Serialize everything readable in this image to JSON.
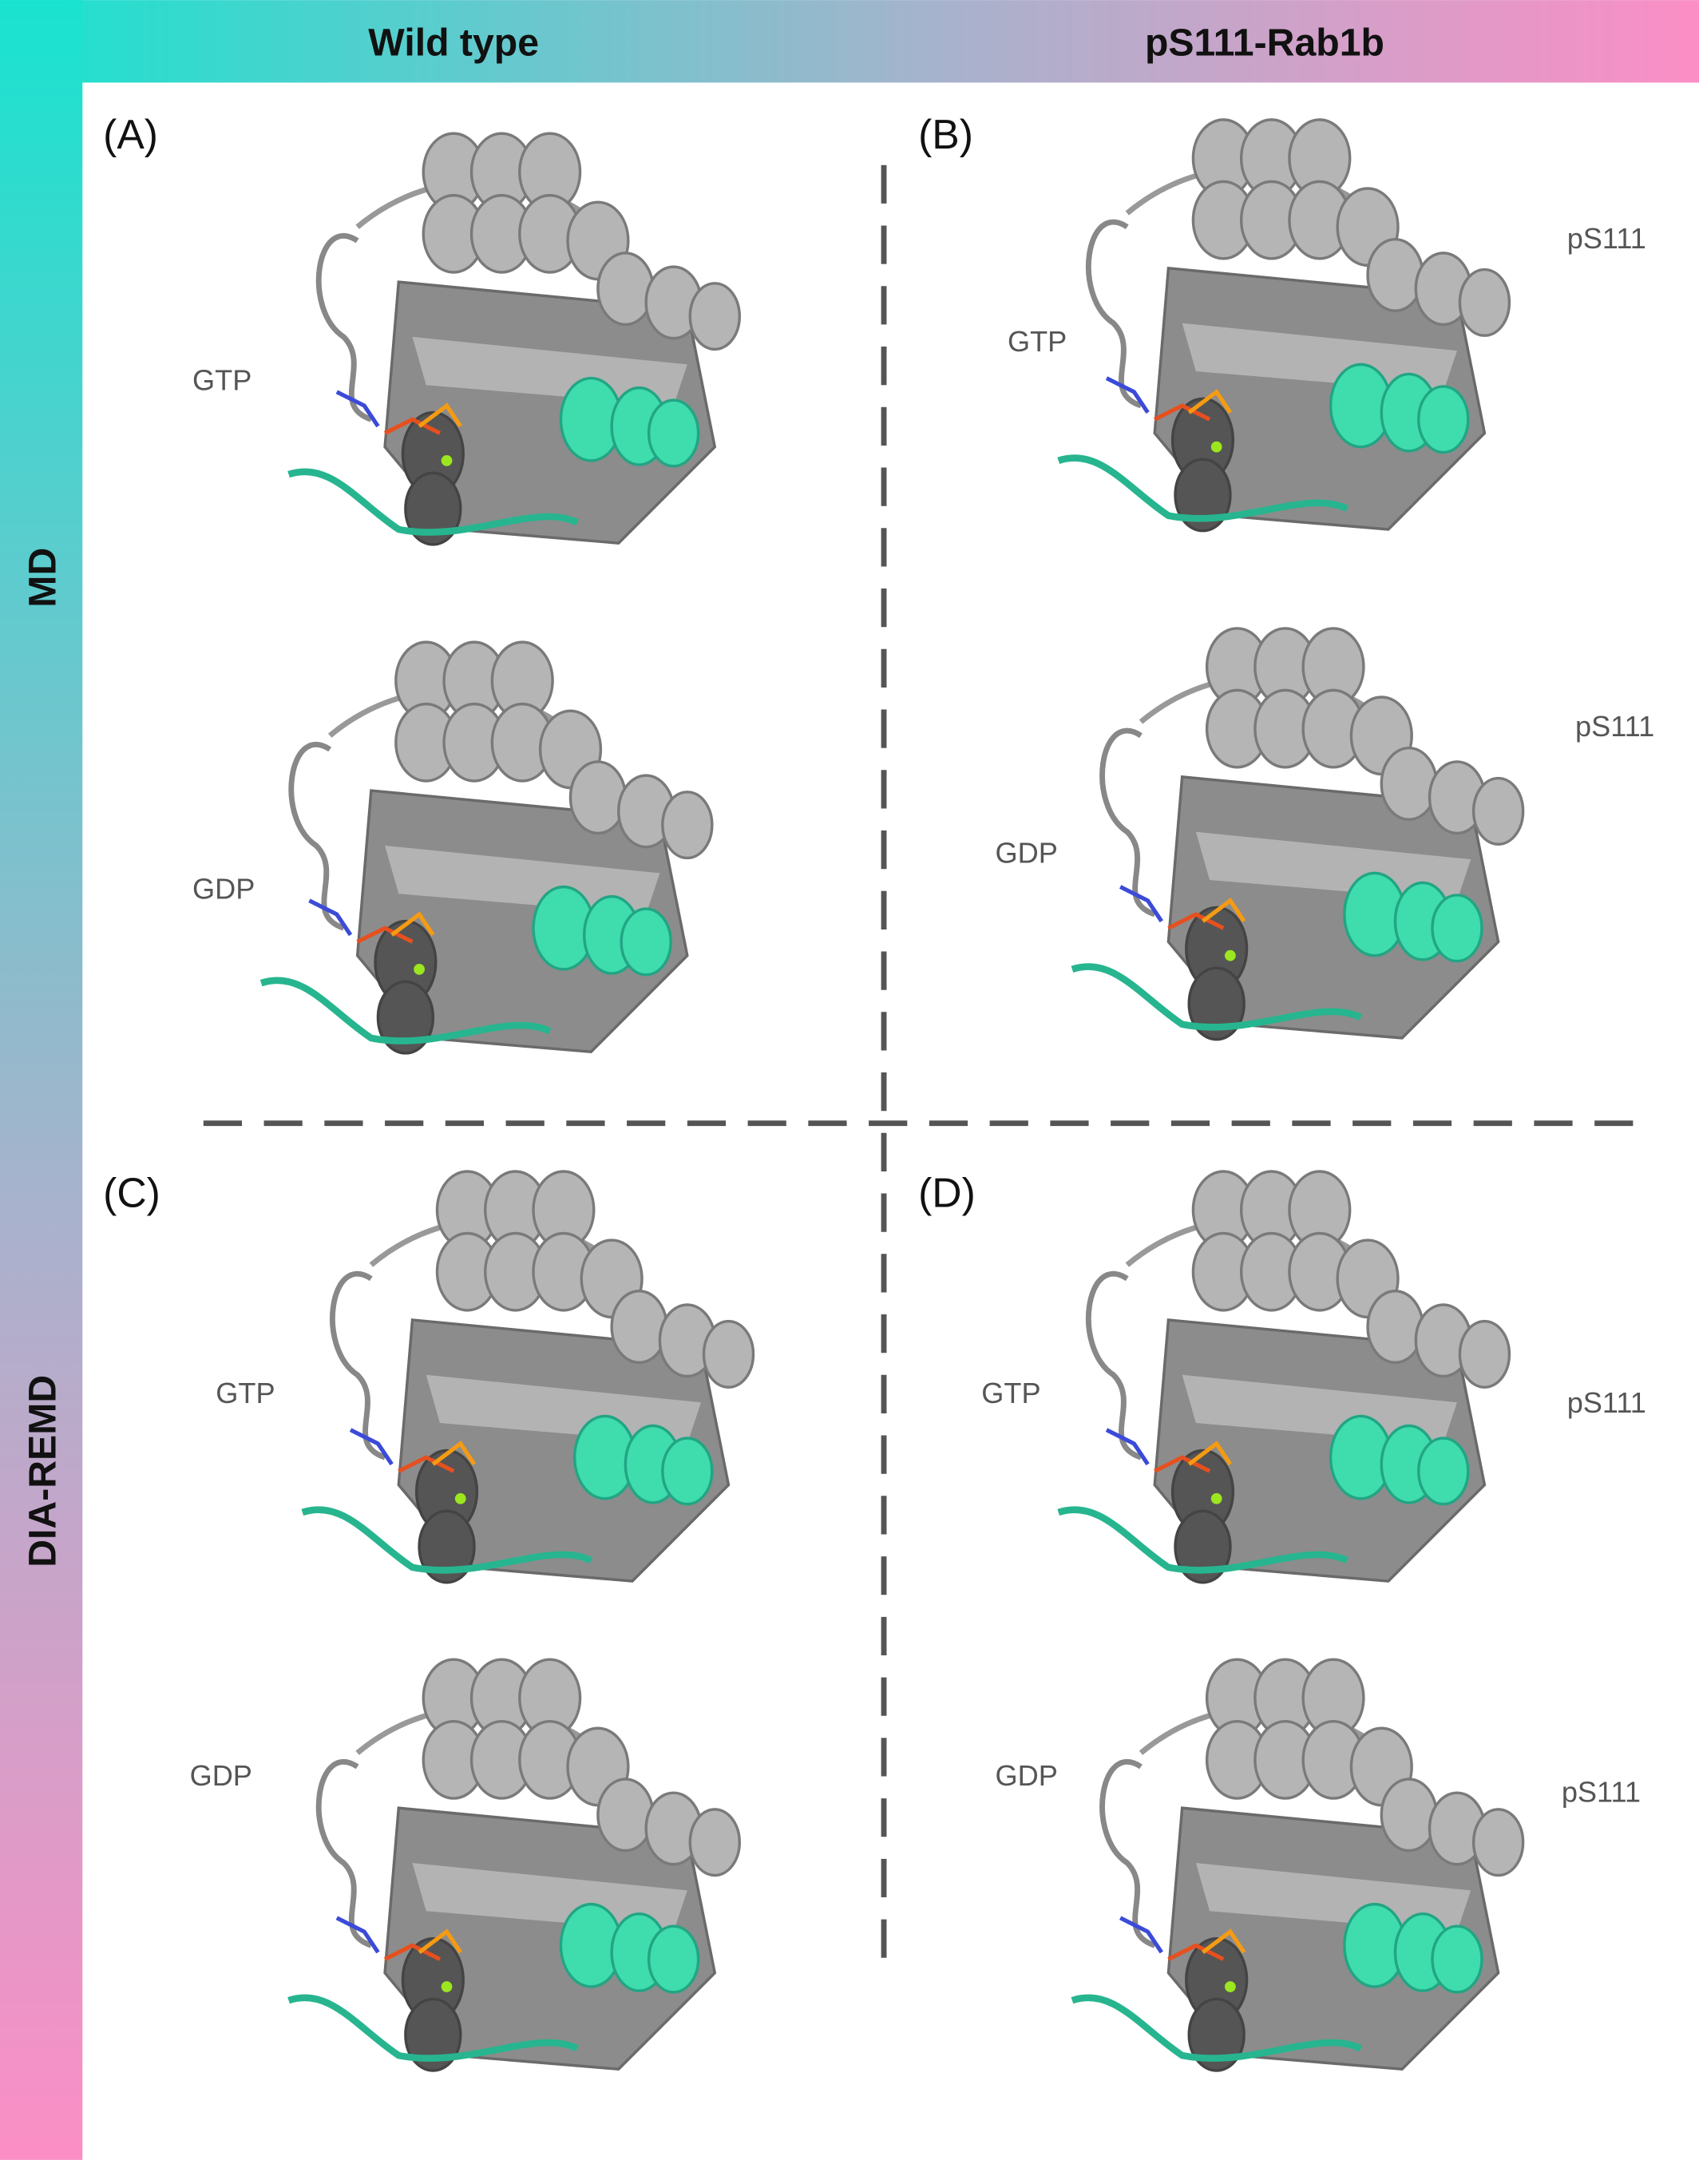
{
  "header": {
    "columns": [
      "Wild type",
      "pS111-Rab1b"
    ],
    "rows": [
      "MD",
      "DIA-REMD"
    ]
  },
  "panels": [
    {
      "label": "(A)",
      "ligands": [
        "GTP",
        "GDP"
      ]
    },
    {
      "label": "(B)",
      "ligands": [
        "GTP",
        "GDP"
      ],
      "sites": [
        "pS111",
        "pS111"
      ]
    },
    {
      "label": "(C)",
      "ligands": [
        "GTP",
        "GDP"
      ]
    },
    {
      "label": "(D)",
      "ligands": [
        "GTP",
        "GDP"
      ],
      "sites": [
        "pS111",
        "pS111"
      ]
    }
  ]
}
